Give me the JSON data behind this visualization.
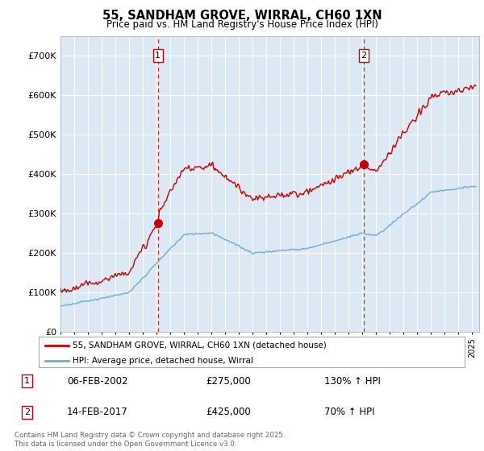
{
  "title": "55, SANDHAM GROVE, WIRRAL, CH60 1XN",
  "subtitle": "Price paid vs. HM Land Registry's House Price Index (HPI)",
  "ylim": [
    0,
    750000
  ],
  "xlim_start": 1995.0,
  "xlim_end": 2025.5,
  "sale1_x": 2002.1,
  "sale1_y": 275000,
  "sale1_label": "1",
  "sale1_date": "06-FEB-2002",
  "sale1_price": "£275,000",
  "sale1_hpi": "130% ↑ HPI",
  "sale2_x": 2017.1,
  "sale2_y": 425000,
  "sale2_label": "2",
  "sale2_date": "14-FEB-2017",
  "sale2_price": "£425,000",
  "sale2_hpi": "70% ↑ HPI",
  "legend_line1": "55, SANDHAM GROVE, WIRRAL, CH60 1XN (detached house)",
  "legend_line2": "HPI: Average price, detached house, Wirral",
  "footer": "Contains HM Land Registry data © Crown copyright and database right 2025.\nThis data is licensed under the Open Government Licence v3.0.",
  "hpi_color": "#6baed6",
  "price_color": "#cc0000",
  "bg_color": "#dce9f5"
}
